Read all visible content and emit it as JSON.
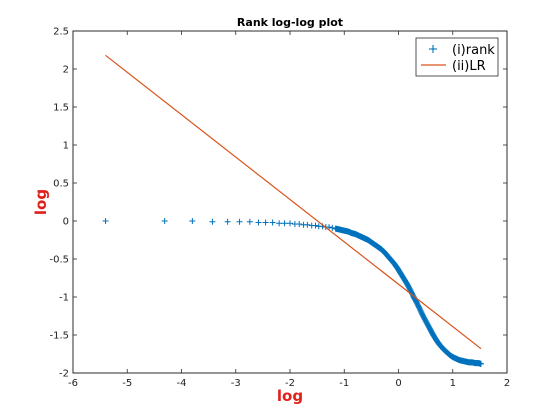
{
  "chart_data": {
    "type": "scatter",
    "title": "Rank log-log plot",
    "xlabel": "log",
    "ylabel": "log",
    "label_color": "#e0201b",
    "xlim": [
      -6,
      2
    ],
    "ylim": [
      -2,
      2.5
    ],
    "xticks": [
      -6,
      -5,
      -4,
      -3,
      -2,
      -1,
      0,
      1,
      2
    ],
    "yticks": [
      -2,
      -1.5,
      -1,
      -0.5,
      0,
      0.5,
      1,
      1.5,
      2,
      2.5
    ],
    "xtick_labels": [
      "-6",
      "-5",
      "-4",
      "-3",
      "-2",
      "-1",
      "0",
      "1",
      "2"
    ],
    "ytick_labels": [
      "-2",
      "-1.5",
      "-1",
      "-0.5",
      "0",
      "0.5",
      "1",
      "1.5",
      "2",
      "2.5"
    ],
    "grid": false,
    "legend_position": "top-right",
    "series": [
      {
        "name": "(i)rank",
        "kind": "markers",
        "marker": "plus",
        "color": "#0072bd",
        "x": [
          -5.4,
          -4.31,
          -3.8,
          -3.43,
          -3.15,
          -2.93,
          -2.74,
          -2.58,
          -2.45,
          -2.32,
          -2.2,
          -2.1,
          -2.0,
          -1.91,
          -1.83,
          -1.75,
          -1.68,
          -1.6,
          -1.53,
          -1.47,
          -1.4,
          -1.34,
          -1.28,
          -1.22,
          -1.16,
          -1.1,
          -1.04,
          -0.98,
          -0.92,
          -0.86,
          -0.8,
          -0.74,
          -0.68,
          -0.62,
          -0.56,
          -0.5,
          -0.44,
          -0.38,
          -0.32,
          -0.26,
          -0.2,
          -0.14,
          -0.08,
          -0.02,
          0.04,
          0.1,
          0.16,
          0.22,
          0.28,
          0.34,
          0.4,
          0.46,
          0.52,
          0.58,
          0.64,
          0.7,
          0.76,
          0.82,
          0.88,
          0.94,
          1.0,
          1.06,
          1.12,
          1.18,
          1.24,
          1.3,
          1.36,
          1.42,
          1.48,
          1.52
        ],
        "y": [
          0.0,
          0.0,
          0.0,
          -0.01,
          -0.01,
          -0.01,
          -0.01,
          -0.02,
          -0.02,
          -0.02,
          -0.03,
          -0.03,
          -0.03,
          -0.04,
          -0.04,
          -0.05,
          -0.05,
          -0.06,
          -0.06,
          -0.07,
          -0.07,
          -0.08,
          -0.08,
          -0.09,
          -0.1,
          -0.11,
          -0.12,
          -0.13,
          -0.14,
          -0.16,
          -0.17,
          -0.19,
          -0.21,
          -0.23,
          -0.25,
          -0.28,
          -0.31,
          -0.34,
          -0.37,
          -0.41,
          -0.46,
          -0.51,
          -0.56,
          -0.62,
          -0.69,
          -0.76,
          -0.83,
          -0.91,
          -1.0,
          -1.08,
          -1.17,
          -1.26,
          -1.34,
          -1.42,
          -1.5,
          -1.57,
          -1.63,
          -1.68,
          -1.72,
          -1.76,
          -1.79,
          -1.81,
          -1.83,
          -1.84,
          -1.85,
          -1.86,
          -1.86,
          -1.87,
          -1.87,
          -1.88
        ]
      },
      {
        "name": "(ii)LR",
        "kind": "line",
        "color": "#d95319",
        "x": [
          -5.4,
          1.52
        ],
        "y": [
          2.18,
          -1.68
        ]
      }
    ]
  }
}
